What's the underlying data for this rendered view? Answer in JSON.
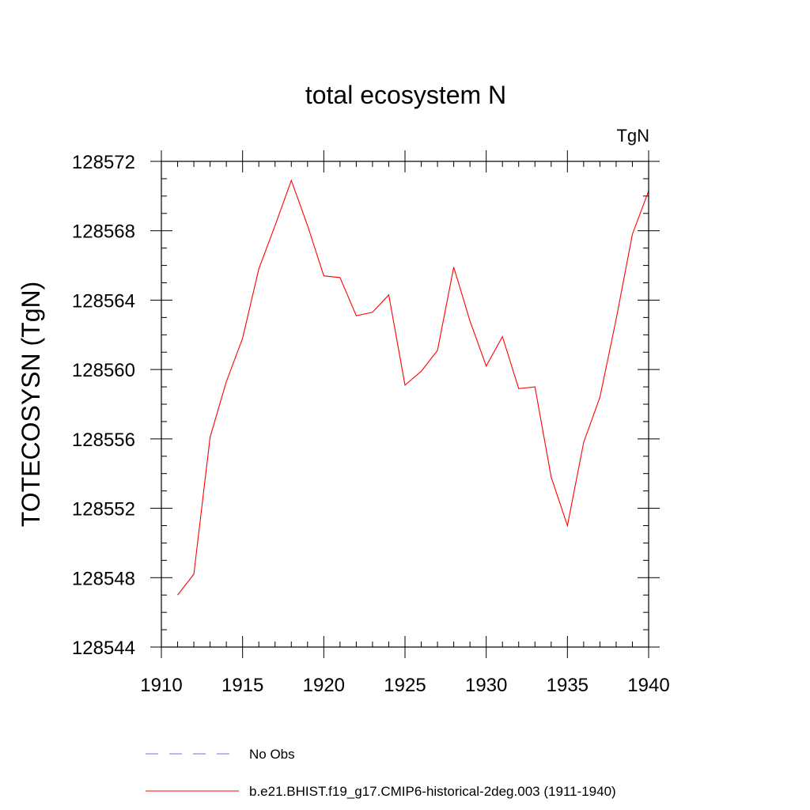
{
  "chart_data": {
    "type": "line",
    "title": "total ecosystem N",
    "units_label": "TgN",
    "xlabel": "",
    "ylabel": "TOTECOSYSN  (TgN)",
    "xlim": [
      1910,
      1940
    ],
    "ylim": [
      128544,
      128572
    ],
    "x_ticks": [
      1910,
      1915,
      1920,
      1925,
      1930,
      1935,
      1940
    ],
    "y_ticks": [
      128544,
      128548,
      128552,
      128556,
      128560,
      128564,
      128568,
      128572
    ],
    "x_minor_step": 1,
    "y_minor_step": 1,
    "grid": false,
    "legend_position": "bottom",
    "series": [
      {
        "name": "b.e21.BHIST.f19_g17.CMIP6-historical-2deg.003 (1911-1940)",
        "color": "#ff0000",
        "dash": "solid",
        "x": [
          1911,
          1912,
          1913,
          1914,
          1915,
          1916,
          1917,
          1918,
          1919,
          1920,
          1921,
          1922,
          1923,
          1924,
          1925,
          1926,
          1927,
          1928,
          1929,
          1930,
          1931,
          1932,
          1933,
          1934,
          1935,
          1936,
          1937,
          1938,
          1939,
          1940
        ],
        "values": [
          128547.0,
          128548.2,
          128556.1,
          128559.3,
          128561.8,
          128565.8,
          128568.3,
          128570.9,
          128568.3,
          128565.4,
          128565.3,
          128563.1,
          128563.3,
          128564.3,
          128559.1,
          128559.9,
          128561.1,
          128565.9,
          128562.8,
          128560.2,
          128561.9,
          128558.9,
          128559.0,
          128553.8,
          128551.0,
          128555.8,
          128558.4,
          128562.9,
          128567.8,
          128570.3
        ]
      }
    ],
    "legend_entries": [
      {
        "name": "No Obs",
        "color": "#7b68ee",
        "dash": "dashed"
      },
      {
        "name": "b.e21.BHIST.f19_g17.CMIP6-historical-2deg.003 (1911-1940)",
        "color": "#ff0000",
        "dash": "solid"
      }
    ]
  }
}
